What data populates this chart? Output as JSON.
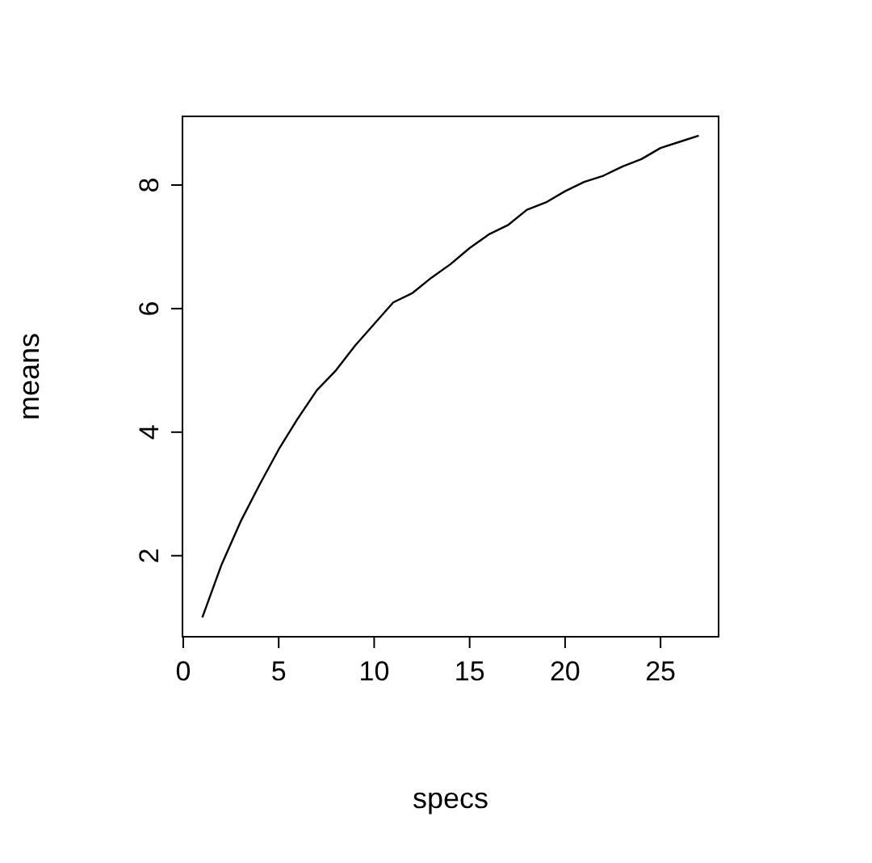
{
  "chart_data": {
    "type": "line",
    "xlabel": "specs",
    "ylabel": "means",
    "x": [
      1,
      2,
      3,
      4,
      5,
      6,
      7,
      8,
      9,
      10,
      11,
      12,
      13,
      14,
      15,
      16,
      17,
      18,
      19,
      20,
      21,
      22,
      23,
      24,
      25,
      26,
      27
    ],
    "series": [
      {
        "color": "#000000",
        "values": [
          1.0,
          1.85,
          2.55,
          3.15,
          3.72,
          4.22,
          4.68,
          5.0,
          5.4,
          5.75,
          6.1,
          6.25,
          6.5,
          6.72,
          6.98,
          7.2,
          7.35,
          7.6,
          7.72,
          7.9,
          8.05,
          8.15,
          8.3,
          8.42,
          8.6,
          8.7,
          8.8
        ]
      }
    ],
    "xlim": [
      -0.04,
      28.04
    ],
    "ylim": [
      0.688,
      9.112
    ],
    "xticks": [
      0,
      5,
      10,
      15,
      20,
      25
    ],
    "yticks": [
      2,
      4,
      6,
      8
    ],
    "grid": false,
    "marker": "none",
    "line_style": "solid"
  }
}
